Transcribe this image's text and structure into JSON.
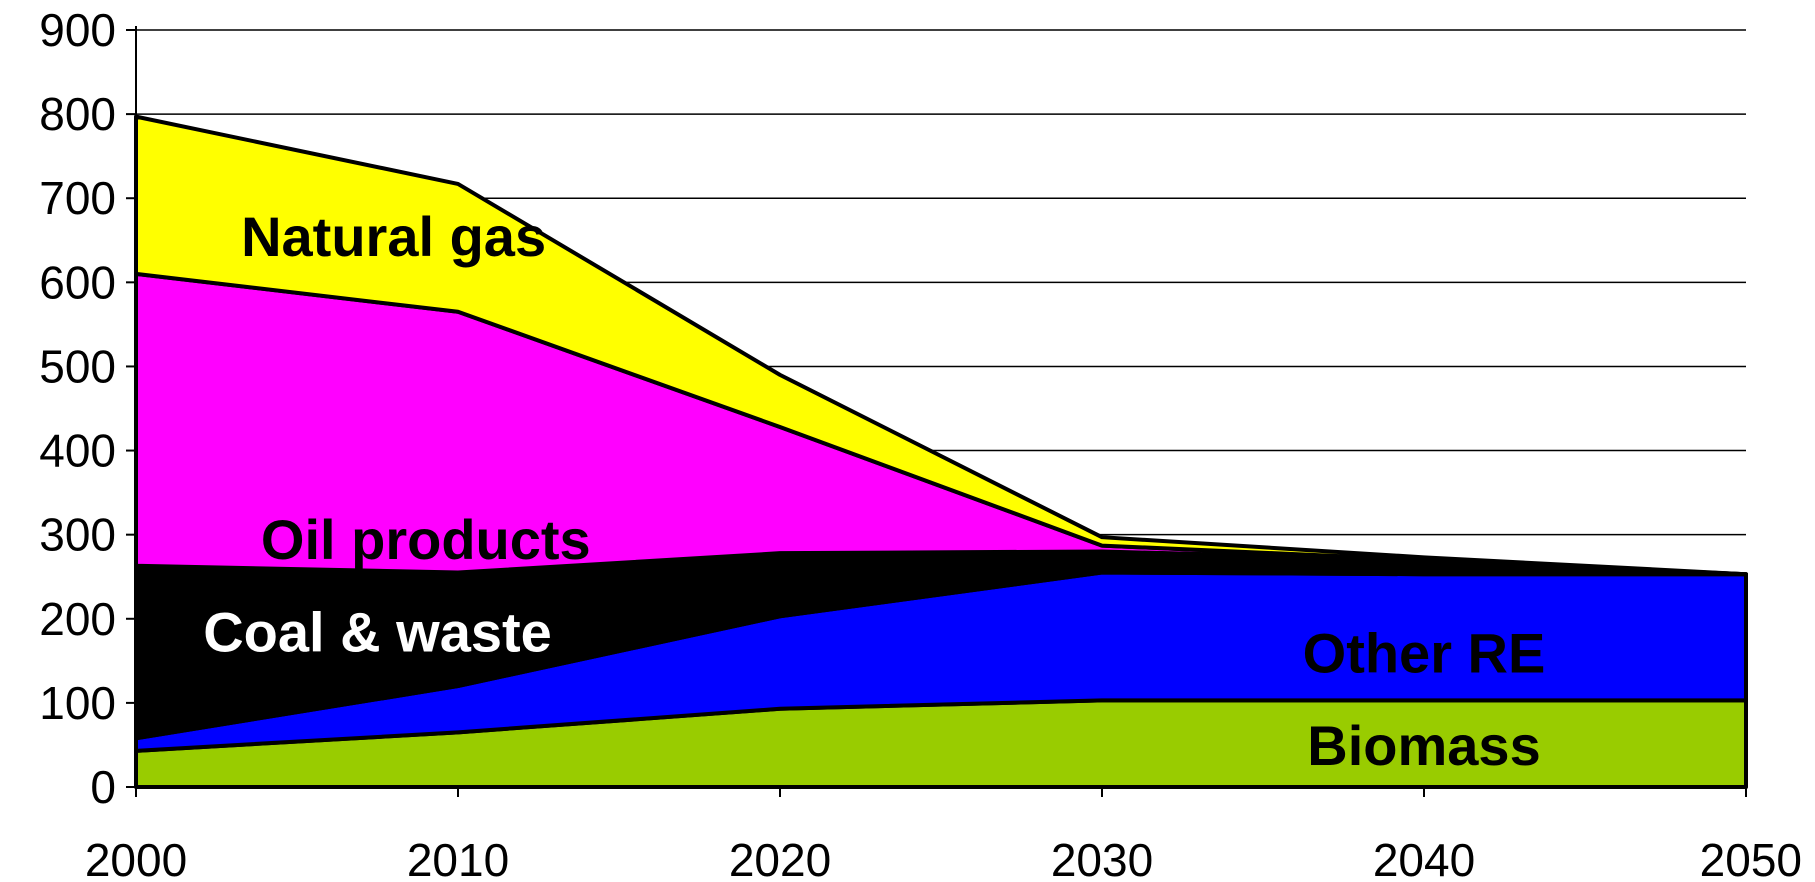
{
  "chart_data": {
    "type": "area",
    "stacked": true,
    "x": [
      2000,
      2010,
      2020,
      2030,
      2040,
      2050
    ],
    "x_tick_labels": [
      "2000",
      "2010",
      "2020",
      "2030",
      "2040",
      "2050"
    ],
    "y_tick_labels": [
      "0",
      "100",
      "200",
      "300",
      "400",
      "500",
      "600",
      "700",
      "800",
      "900"
    ],
    "ylim": [
      0,
      900
    ],
    "grid": true,
    "series": [
      {
        "name": "Biomass",
        "values": [
          43,
          65,
          93,
          103,
          103,
          103
        ],
        "color": "#99CC00",
        "label_color": "#000000"
      },
      {
        "name": "Other RE",
        "values": [
          15,
          55,
          110,
          152,
          150,
          150
        ],
        "color": "#0000FF",
        "label_color": "#000000"
      },
      {
        "name": "Coal & waste",
        "values": [
          205,
          135,
          75,
          25,
          17,
          0
        ],
        "color": "#000000",
        "label_color": "#FFFFFF"
      },
      {
        "name": "Oil products",
        "values": [
          347,
          310,
          150,
          7,
          0,
          0
        ],
        "color": "#FF00FF",
        "label_color": "#000000"
      },
      {
        "name": "Natural gas",
        "values": [
          187,
          152,
          62,
          10,
          3,
          0
        ],
        "color": "#FFFF00",
        "label_color": "#000000"
      }
    ]
  }
}
